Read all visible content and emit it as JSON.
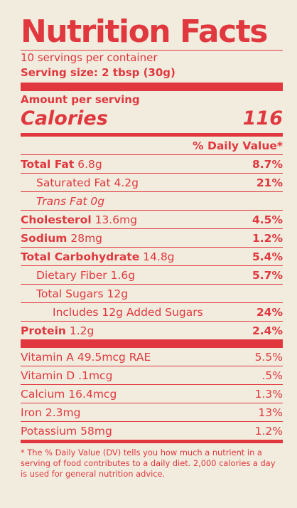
{
  "title": "Nutrition Facts",
  "servings": "10 servings per container",
  "serving_size": "Serving size: 2 tbsp (30g)",
  "amount_per_serving": "Amount per serving",
  "calories_label": "Calories",
  "calories_value": "116",
  "daily_value_header": "% Daily Value*",
  "nutrients": [
    {
      "name": "Total Fat",
      "amount": "6.8g",
      "dv": "8.7%"
    },
    {
      "name": "Saturated Fat",
      "amount": "4.2g",
      "dv": "21%"
    },
    {
      "name": "Trans Fat",
      "amount": "0g",
      "dv": ""
    },
    {
      "name": "Cholesterol",
      "amount": "13.6mg",
      "dv": "4.5%"
    },
    {
      "name": "Sodium",
      "amount": "28mg",
      "dv": "1.2%"
    },
    {
      "name": "Total Carbohydrate",
      "amount": "14.8g",
      "dv": "5.4%"
    },
    {
      "name": "Dietary Fiber",
      "amount": "1.6g",
      "dv": "5.7%"
    },
    {
      "name": "Total Sugars",
      "amount": "12g",
      "dv": ""
    },
    {
      "name": "Includes 12g Added Sugars",
      "amount": "",
      "dv": "24%"
    },
    {
      "name": "Protein",
      "amount": "1.2g",
      "dv": "2.4%"
    }
  ],
  "vitamins": [
    {
      "label": "Vitamin A 49.5mcg RAE",
      "dv": "5.5%"
    },
    {
      "label": "Vitamin D .1mcg",
      "dv": ".5%"
    },
    {
      "label": "Calcium 16.4mcg",
      "dv": "1.3%"
    },
    {
      "label": "Iron 2.3mg",
      "dv": "13%"
    },
    {
      "label": "Potassium 58mg",
      "dv": "1.2%"
    }
  ],
  "footnote": "* The % Daily Value (DV) tells you how much a nutrient in a serving of food contributes to a daily diet. 2,000 calories a day is used for general nutrition advice.",
  "colors": {
    "background": "#f2ecdf",
    "accent": "#e0383e"
  }
}
